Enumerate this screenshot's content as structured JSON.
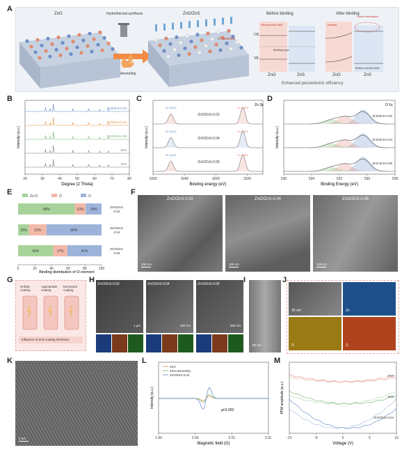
{
  "panels": {
    "A": {
      "label": "A",
      "left_title": "ZnO",
      "arrow_top": "Hydrothermal synthesis",
      "arrow_bottom": "Annealing",
      "mid_title": "ZnO/ZnS",
      "vacancy_label": "O vacanies",
      "before_title": "Before binding",
      "after_title": "After binding",
      "piezo_field": "Piezoelectric field",
      "cb": "CB",
      "vb": "VB",
      "binding_layer": "Binding layer",
      "zno": "ZnO",
      "zns": "ZnS",
      "transfer": "transfer",
      "under_stim": "Under stimulation",
      "built_in": "Built-in electric field",
      "caption": "Enhanced piezoelectric efficiency"
    },
    "B": {
      "label": "B",
      "traces": [
        "ZnO/ZnS-0.02",
        "ZnO/ZnS-0.04",
        "ZnO/ZnS-0.06",
        "ZnO",
        "ZnS"
      ],
      "xlabel": "Degree (2 Theta)",
      "ylabel": "Intensity (a.u.)",
      "xticks": [
        "20",
        "30",
        "40",
        "50",
        "60",
        "70",
        "80"
      ]
    },
    "C": {
      "label": "C",
      "tag": "Zn 2p",
      "samples": [
        "ZnO/ZnS-0.02",
        "ZnO/ZnS-0.04",
        "ZnO/ZnS-0.06"
      ],
      "peak_left": [
        "Zn 2p1/2\n1044.3 eV",
        "Zn 2p1/2\n1044.2 eV",
        "Zn 2p1/2\n1044.3 eV"
      ],
      "peak_right": [
        "Zn 2p3/2\n1021.4 eV",
        "Zn 2p3/2\n1021.3 eV",
        "Zn 2p3/2\n1021.3 eV"
      ],
      "xlabel": "Binding energy (eV)",
      "ylabel": "Intensity (a.u.)",
      "xticks": [
        "1050",
        "1040",
        "1030",
        "1020"
      ]
    },
    "D": {
      "label": "D",
      "tag": "O 1s",
      "samples": [
        "ZnO/ZnS-0.02",
        "ZnO/ZnS-0.04",
        "ZnO-ZnS-0.06"
      ],
      "xlabel": "Binding Energy (eV)",
      "ylabel": "Intensity (a.u.)",
      "xticks": [
        "536",
        "534",
        "532",
        "530",
        "528"
      ]
    },
    "E": {
      "label": "E",
      "legend": [
        "Zn-O",
        "O",
        "O"
      ],
      "xlabel": "Binding distribution of O element",
      "xticks": [
        "0",
        "20",
        "40",
        "60",
        "80",
        "100"
      ]
    },
    "F": {
      "label": "F",
      "images": [
        {
          "caption": "ZnO/ZnS-0.02",
          "scale": "100 nm"
        },
        {
          "caption": "ZnO/ZnS-0.04",
          "scale": "100 nm"
        },
        {
          "caption": "ZnO/ZnS-0.06",
          "scale": "100 nm"
        }
      ]
    },
    "G": {
      "label": "G",
      "stages": [
        "Unfully coating",
        "Appropriate coating",
        "Excessive coating"
      ],
      "caption": "Influence of ZnS coating thickness"
    },
    "H": {
      "label": "H",
      "images": [
        {
          "caption": "ZnO/ZnS-0.02",
          "scale": "1 μm"
        },
        {
          "caption": "ZnO/ZnS-0.04",
          "scale": "200 nm"
        },
        {
          "caption": "ZnO/ZnS-0.06",
          "scale": "500 nm"
        }
      ],
      "elements": [
        "Zn",
        "O",
        "S"
      ]
    },
    "I": {
      "label": "I",
      "scale": "50 nm"
    },
    "J": {
      "label": "J",
      "scale": "30 nm",
      "maps": [
        "Zn",
        "O",
        "S"
      ]
    },
    "K": {
      "label": "K",
      "scale": "2 nm"
    },
    "L": {
      "label": "L",
      "legend": [
        "ZnO",
        "ZnO-annealing",
        "ZnO/ZnS-0.04"
      ],
      "gvalue": "g=2.003",
      "xlabel": "Magnetic field (G)",
      "ylabel": "Intensity (a.u.)",
      "xticks": [
        "1.99",
        "2.00",
        "2.01",
        "2.02"
      ]
    },
    "M": {
      "label": "M",
      "series_labels": [
        "ZnO",
        "ZnS",
        "ZnO/ZnS-0.04"
      ],
      "xlabel": "Voltage (V)",
      "ylabel": "PFM amplitude (a.u.)",
      "xticks": [
        "-10",
        "-5",
        "0",
        "5",
        "10"
      ]
    }
  },
  "chart_data": [
    {
      "type": "bar",
      "panel": "E",
      "stacked": true,
      "orientation": "horizontal",
      "categories": [
        "ZnO/ZnS-0.02",
        "ZnO/ZnS-0.04",
        "ZnO/ZnS-0.06"
      ],
      "series": [
        {
          "name": "Zn-O",
          "values": [
            68,
            13,
            42
          ],
          "labels": [
            "68%",
            "13%",
            "42%"
          ],
          "color": "#a8d39a"
        },
        {
          "name": "O",
          "values": [
            13,
            21,
            17
          ],
          "labels": [
            "13%",
            "21%",
            "17%"
          ],
          "color": "#f2b9a8"
        },
        {
          "name": "O",
          "values": [
            19,
            66,
            41
          ],
          "labels": [
            "19%",
            "66%",
            "41%"
          ],
          "color": "#9db3da"
        }
      ],
      "xlabel": "Binding distribution of O element",
      "xlim": [
        0,
        100
      ]
    }
  ],
  "colors": {
    "blue": "#5b84c4",
    "red": "#e07a6a",
    "green": "#6bb26b",
    "gray": "#777777"
  }
}
